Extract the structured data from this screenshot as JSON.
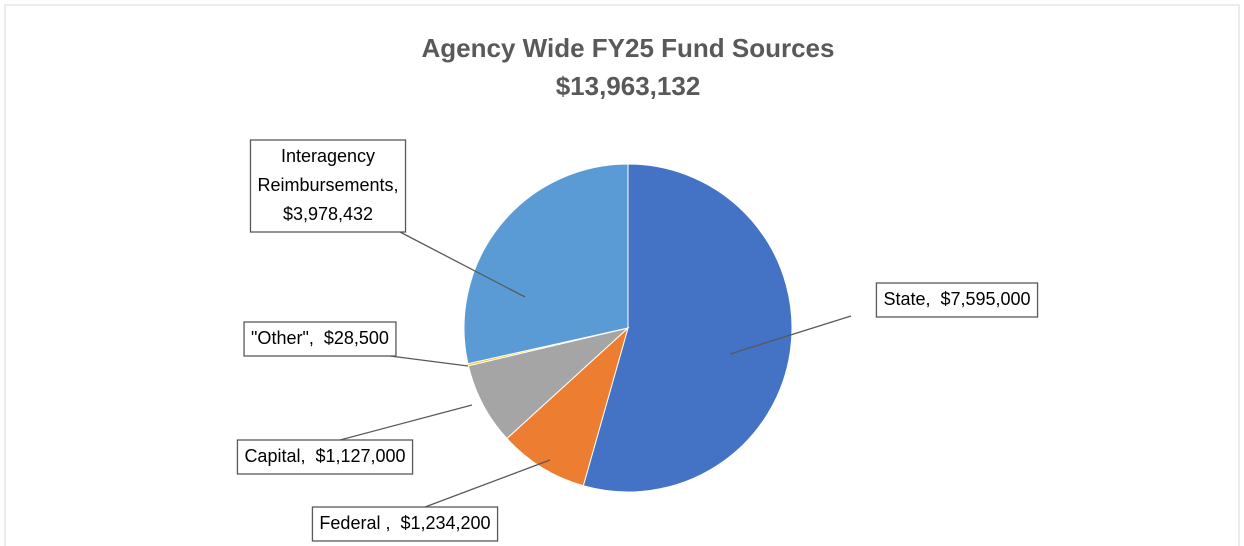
{
  "chart_data": {
    "type": "pie",
    "title": "Agency Wide FY25 Fund Sources",
    "subtitle": "$13,963,132",
    "categories": [
      "State,",
      "Federal ,",
      "Capital,",
      "\"Other\",",
      "Interagency Reimbursements,"
    ],
    "values": [
      7595000,
      1234200,
      1127000,
      28500,
      3978432
    ],
    "value_labels": [
      "$7,595,000",
      "$1,234,200",
      "$1,127,000",
      "$28,500",
      "$3,978,432"
    ],
    "colors": [
      "#4472c4",
      "#ed7d31",
      "#a5a5a5",
      "#ffc000",
      "#5b9bd5"
    ]
  }
}
